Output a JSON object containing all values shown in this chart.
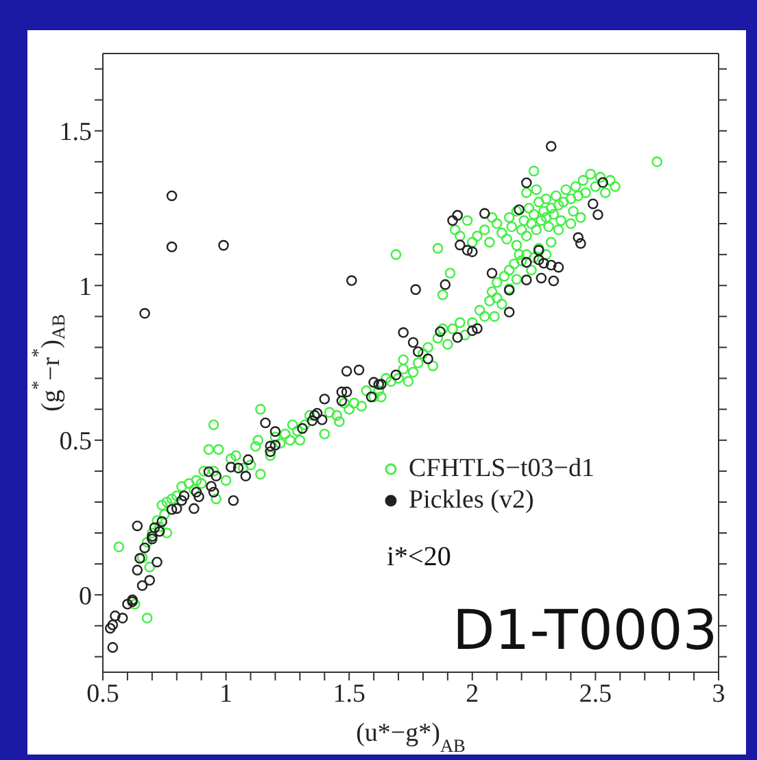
{
  "chart_data": {
    "type": "scatter",
    "xlabel": "(u*−g*)$_{AB}$",
    "ylabel": "(g$^{*}$−r$^{*}$)$_{AB}$",
    "xlim": [
      0.5,
      3
    ],
    "ylim": [
      -0.25,
      1.75
    ],
    "xticks": [
      0.5,
      {
        "value": 0.6,
        "label": null
      },
      {
        "value": 0.7,
        "label": null
      },
      {
        "value": 0.8,
        "label": null
      },
      {
        "value": 0.9,
        "label": null
      },
      1,
      {
        "value": 1.1,
        "label": null
      },
      {
        "value": 1.2,
        "label": null
      },
      {
        "value": 1.3,
        "label": null
      },
      {
        "value": 1.4,
        "label": null
      },
      1.5,
      {
        "value": 1.6,
        "label": null
      },
      {
        "value": 1.7,
        "label": null
      },
      {
        "value": 1.8,
        "label": null
      },
      {
        "value": 1.9,
        "label": null
      },
      2,
      {
        "value": 2.1,
        "label": null
      },
      {
        "value": 2.2,
        "label": null
      },
      {
        "value": 2.3,
        "label": null
      },
      {
        "value": 2.4,
        "label": null
      },
      2.5,
      {
        "value": 2.6,
        "label": null
      },
      {
        "value": 2.7,
        "label": null
      },
      {
        "value": 2.8,
        "label": null
      },
      {
        "value": 2.9,
        "label": null
      },
      3
    ],
    "yticks": [
      {
        "value": -0.2,
        "label": null
      },
      {
        "value": -0.1,
        "label": null
      },
      0,
      {
        "value": 0.1,
        "label": null
      },
      {
        "value": 0.2,
        "label": null
      },
      {
        "value": 0.3,
        "label": null
      },
      {
        "value": 0.4,
        "label": null
      },
      0.5,
      {
        "value": 0.6,
        "label": null
      },
      {
        "value": 0.7,
        "label": null
      },
      {
        "value": 0.8,
        "label": null
      },
      {
        "value": 0.9,
        "label": null
      },
      1,
      {
        "value": 1.1,
        "label": null
      },
      {
        "value": 1.2,
        "label": null
      },
      {
        "value": 1.3,
        "label": null
      },
      {
        "value": 1.4,
        "label": null
      },
      1.5,
      {
        "value": 1.6,
        "label": null
      },
      {
        "value": 1.7,
        "label": null
      }
    ],
    "marker": "circle",
    "legend": "bottom right",
    "annotations": [
      "i*<20",
      "D1-T0003"
    ],
    "series": [
      {
        "name": "CFHTLS−t03−d1",
        "color": "#44ee44",
        "x": [
          2.75,
          1.69,
          2.25,
          0.565,
          0.68,
          0.63,
          0.95,
          1.14,
          1.88,
          1.91,
          1.86,
          1.98,
          2.09,
          0.7,
          0.72,
          0.75,
          0.74,
          0.76,
          0.78,
          0.8,
          0.82,
          0.85,
          0.87,
          0.88,
          0.9,
          0.91,
          0.93,
          0.95,
          0.97,
          0.96,
          1.0,
          1.02,
          1.04,
          1.07,
          1.1,
          1.12,
          1.14,
          1.13,
          1.18,
          1.2,
          1.22,
          1.24,
          1.26,
          1.27,
          1.29,
          1.3,
          1.32,
          1.34,
          1.4,
          1.42,
          1.45,
          1.46,
          1.48,
          1.5,
          1.52,
          1.55,
          1.57,
          1.6,
          1.62,
          1.63,
          1.65,
          1.67,
          1.7,
          1.72,
          1.72,
          1.74,
          1.76,
          1.78,
          1.8,
          1.82,
          1.84,
          1.86,
          1.88,
          1.9,
          1.92,
          1.95,
          1.97,
          2.0,
          2.03,
          2.05,
          2.07,
          2.08,
          2.1,
          2.1,
          2.12,
          2.13,
          2.15,
          2.15,
          2.17,
          2.18,
          2.2,
          2.22,
          2.24,
          2.25,
          2.27,
          2.3,
          2.32,
          0.66,
          0.69,
          0.68,
          0.73,
          0.76,
          2.1,
          2.12,
          2.14,
          2.15,
          2.16,
          2.18,
          2.18,
          2.2,
          2.21,
          2.22,
          2.23,
          2.24,
          2.25,
          2.26,
          2.27,
          2.28,
          2.29,
          2.3,
          2.3,
          2.31,
          2.32,
          2.33,
          2.34,
          2.35,
          2.36,
          2.37,
          2.38,
          2.4,
          2.41,
          2.42,
          2.43,
          2.45,
          2.46,
          2.48,
          2.5,
          2.52,
          2.54,
          2.56,
          2.58,
          2.05,
          2.07,
          2.08,
          2.0,
          2.02,
          1.95,
          1.93,
          2.35,
          2.4,
          2.44,
          2.22,
          2.26,
          2.19
        ],
        "values": [
          1.4,
          1.1,
          1.37,
          0.155,
          -0.075,
          -0.03,
          0.55,
          0.6,
          0.97,
          1.04,
          1.12,
          1.21,
          0.9,
          0.2,
          0.24,
          0.26,
          0.29,
          0.3,
          0.31,
          0.32,
          0.35,
          0.36,
          0.34,
          0.37,
          0.36,
          0.4,
          0.47,
          0.4,
          0.47,
          0.31,
          0.37,
          0.44,
          0.45,
          0.41,
          0.42,
          0.48,
          0.39,
          0.5,
          0.45,
          0.51,
          0.49,
          0.52,
          0.5,
          0.55,
          0.53,
          0.5,
          0.55,
          0.58,
          0.52,
          0.59,
          0.58,
          0.56,
          0.62,
          0.6,
          0.62,
          0.61,
          0.66,
          0.64,
          0.66,
          0.64,
          0.7,
          0.69,
          0.7,
          0.73,
          0.76,
          0.69,
          0.72,
          0.75,
          0.78,
          0.8,
          0.74,
          0.83,
          0.86,
          0.81,
          0.86,
          0.88,
          0.84,
          0.88,
          0.92,
          0.9,
          0.95,
          0.98,
          0.96,
          1.01,
          0.94,
          1.03,
          1.05,
          0.99,
          1.07,
          1.02,
          1.08,
          1.1,
          1.05,
          1.09,
          1.12,
          1.1,
          1.14,
          0.12,
          0.09,
          0.17,
          0.22,
          0.2,
          1.2,
          1.17,
          1.15,
          1.22,
          1.19,
          1.24,
          1.13,
          1.18,
          1.21,
          1.16,
          1.25,
          1.2,
          1.23,
          1.18,
          1.27,
          1.21,
          1.24,
          1.22,
          1.28,
          1.19,
          1.25,
          1.23,
          1.29,
          1.26,
          1.21,
          1.27,
          1.31,
          1.28,
          1.24,
          1.32,
          1.29,
          1.34,
          1.3,
          1.36,
          1.32,
          1.35,
          1.3,
          1.34,
          1.32,
          1.18,
          1.14,
          1.22,
          1.14,
          1.16,
          1.16,
          1.18,
          1.18,
          1.2,
          1.22,
          1.3,
          1.31,
          1.1
        ]
      },
      {
        "name": "Pickles (v2)",
        "color": "#222222",
        "x": [
          0.78,
          0.78,
          0.99,
          0.67,
          1.51,
          2.32,
          2.53,
          2.22,
          2.49,
          2.51,
          2.19,
          2.05,
          1.92,
          1.94,
          1.95,
          1.98,
          2.0,
          2.43,
          2.44,
          2.27,
          2.22,
          2.27,
          2.29,
          2.32,
          2.35,
          2.08,
          2.22,
          2.28,
          2.33,
          2.15,
          2.15,
          1.89,
          1.77,
          1.72,
          1.76,
          1.78,
          1.82,
          1.87,
          1.94,
          2.0,
          2.02,
          1.69,
          1.54,
          1.49,
          1.47,
          1.49,
          1.47,
          1.4,
          1.6,
          1.62,
          1.63,
          1.59,
          1.36,
          1.37,
          1.39,
          1.35,
          1.31,
          1.2,
          1.16,
          1.18,
          1.2,
          1.18,
          1.09,
          1.05,
          1.02,
          1.08,
          1.03,
          0.93,
          0.96,
          0.94,
          0.95,
          0.88,
          0.89,
          0.87,
          0.83,
          0.82,
          0.8,
          0.78,
          0.74,
          0.73,
          0.71,
          0.7,
          0.7,
          0.67,
          0.64,
          0.65,
          0.72,
          0.64,
          0.69,
          0.66,
          0.62,
          0.62,
          0.6,
          0.58,
          0.55,
          0.53,
          0.54,
          0.54
        ],
        "values": [
          1.29,
          1.125,
          1.13,
          0.91,
          1.016,
          1.45,
          1.333,
          1.332,
          1.264,
          1.229,
          1.245,
          1.233,
          1.21,
          1.227,
          1.131,
          1.114,
          1.109,
          1.155,
          1.136,
          1.114,
          1.075,
          1.083,
          1.072,
          1.066,
          1.059,
          1.04,
          1.018,
          1.024,
          1.015,
          0.985,
          0.914,
          1.003,
          0.987,
          0.848,
          0.816,
          0.786,
          0.763,
          0.851,
          0.832,
          0.854,
          0.861,
          0.711,
          0.727,
          0.723,
          0.656,
          0.656,
          0.627,
          0.633,
          0.687,
          0.68,
          0.681,
          0.64,
          0.58,
          0.587,
          0.566,
          0.563,
          0.538,
          0.528,
          0.556,
          0.481,
          0.484,
          0.463,
          0.437,
          0.41,
          0.413,
          0.384,
          0.305,
          0.398,
          0.384,
          0.351,
          0.332,
          0.332,
          0.317,
          0.279,
          0.32,
          0.305,
          0.279,
          0.276,
          0.237,
          0.205,
          0.217,
          0.189,
          0.181,
          0.152,
          0.223,
          0.118,
          0.106,
          0.08,
          0.047,
          0.03,
          -0.016,
          -0.022,
          -0.03,
          -0.075,
          -0.068,
          -0.108,
          -0.097,
          -0.17
        ]
      }
    ]
  }
}
